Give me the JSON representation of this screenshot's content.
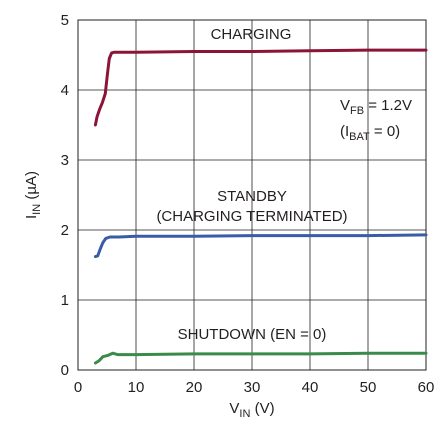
{
  "chart_data": {
    "type": "line",
    "xlabel": {
      "main": "V",
      "sub": "IN",
      "unit": " (V)"
    },
    "ylabel": {
      "main": "I",
      "sub": "IN",
      "unit": " (µA)"
    },
    "xlim": [
      0,
      60
    ],
    "ylim": [
      0,
      5
    ],
    "xticks": [
      "0",
      "10",
      "20",
      "30",
      "40",
      "50",
      "60"
    ],
    "yticks": [
      "0",
      "1",
      "2",
      "3",
      "4",
      "5"
    ],
    "grid": true,
    "series": [
      {
        "name": "CHARGING",
        "color": "#8b1538",
        "points": [
          [
            3,
            3.5
          ],
          [
            3.3,
            3.62
          ],
          [
            3.7,
            3.72
          ],
          [
            4.2,
            3.82
          ],
          [
            4.7,
            3.95
          ],
          [
            5.1,
            4.25
          ],
          [
            5.4,
            4.45
          ],
          [
            5.8,
            4.53
          ],
          [
            6.3,
            4.54
          ],
          [
            10,
            4.54
          ],
          [
            20,
            4.55
          ],
          [
            30,
            4.55
          ],
          [
            40,
            4.56
          ],
          [
            50,
            4.57
          ],
          [
            60,
            4.57
          ]
        ]
      },
      {
        "name": "STANDBY",
        "color": "#3a5ba8",
        "points": [
          [
            3,
            1.62
          ],
          [
            3.4,
            1.63
          ],
          [
            3.8,
            1.72
          ],
          [
            4.3,
            1.82
          ],
          [
            4.8,
            1.88
          ],
          [
            5.5,
            1.9
          ],
          [
            7,
            1.9
          ],
          [
            10,
            1.91
          ],
          [
            20,
            1.91
          ],
          [
            30,
            1.92
          ],
          [
            40,
            1.92
          ],
          [
            50,
            1.92
          ],
          [
            60,
            1.93
          ]
        ]
      },
      {
        "name": "SHUTDOWN",
        "color": "#3a8a4a",
        "points": [
          [
            3,
            0.1
          ],
          [
            3.6,
            0.13
          ],
          [
            4.3,
            0.19
          ],
          [
            5.2,
            0.21
          ],
          [
            6,
            0.24
          ],
          [
            6.8,
            0.22
          ],
          [
            10,
            0.22
          ],
          [
            20,
            0.23
          ],
          [
            30,
            0.23
          ],
          [
            40,
            0.23
          ],
          [
            50,
            0.24
          ],
          [
            60,
            0.24
          ]
        ]
      }
    ],
    "annotations": {
      "charging": "CHARGING",
      "standby_line1": "STANDBY",
      "standby_line2": "(CHARGING TERMINATED)",
      "shutdown": "SHUTDOWN (EN = 0)",
      "vfb": {
        "main": "V",
        "sub": "FB",
        "rest": " = 1.2V"
      },
      "ibat": {
        "pre": "(I",
        "sub": "BAT",
        "rest": " = 0)"
      }
    }
  }
}
